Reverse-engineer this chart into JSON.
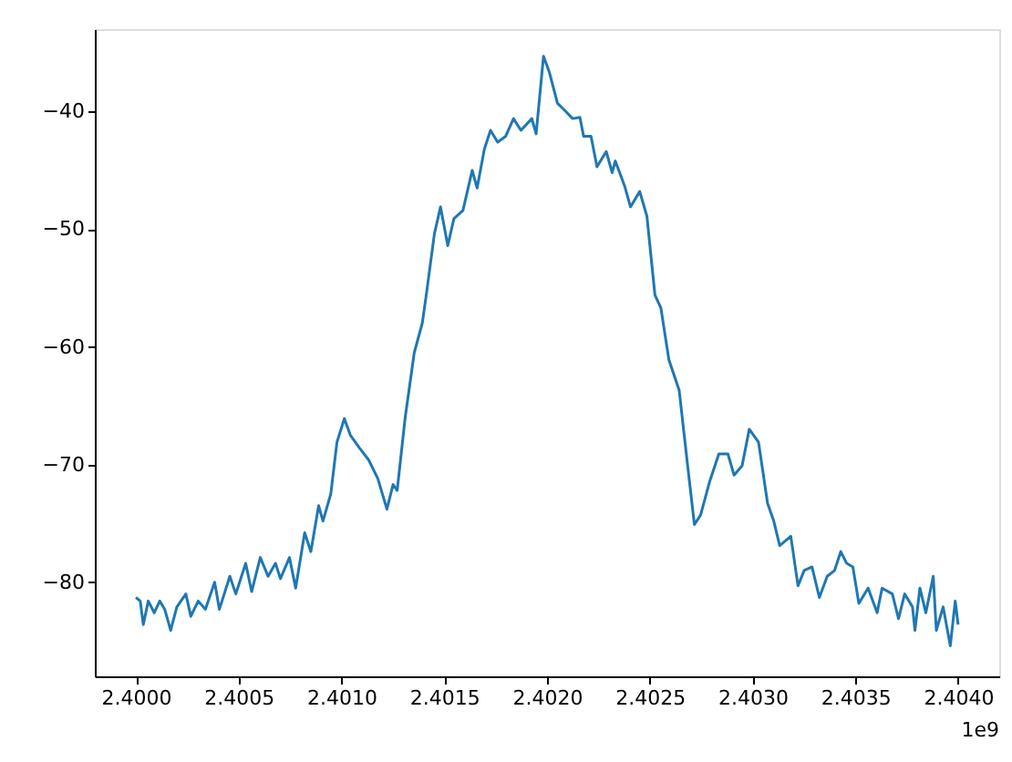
{
  "chart_data": {
    "type": "line",
    "grid": false,
    "annotations": [
      "1e9"
    ],
    "xlim": [
      2.3998,
      2.4042
    ],
    "xticks": [
      {
        "value": 2.4,
        "label": "2.4000"
      },
      {
        "value": 2.4005,
        "label": "2.4005"
      },
      {
        "value": 2.401,
        "label": "2.4010"
      },
      {
        "value": 2.4015,
        "label": "2.4015"
      },
      {
        "value": 2.402,
        "label": "2.4020"
      },
      {
        "value": 2.4025,
        "label": "2.4025"
      },
      {
        "value": 2.403,
        "label": "2.4030"
      },
      {
        "value": 2.4035,
        "label": "2.4035"
      },
      {
        "value": 2.404,
        "label": "2.4040"
      }
    ],
    "ylim": [
      -88,
      -33
    ],
    "yticks": [
      -80,
      -70,
      -60,
      -50,
      -40
    ],
    "series": [
      {
        "color": "#1f77b4",
        "x": [
          2.4,
          2.400021,
          2.400036,
          2.40006,
          2.400089,
          2.400116,
          2.40014,
          2.400169,
          2.400199,
          2.400243,
          2.400267,
          2.400303,
          2.400338,
          2.400383,
          2.400406,
          2.400457,
          2.400486,
          2.400534,
          2.400563,
          2.400605,
          2.400643,
          2.400679,
          2.400703,
          2.400747,
          2.400777,
          2.400821,
          2.400851,
          2.400889,
          2.40091,
          2.400948,
          2.400978,
          2.401014,
          2.401043,
          2.401088,
          2.401132,
          2.401177,
          2.401221,
          2.401251,
          2.401271,
          2.40131,
          2.401354,
          2.401393,
          2.401414,
          2.401452,
          2.401482,
          2.401517,
          2.401547,
          2.401591,
          2.401636,
          2.40166,
          2.401695,
          2.401725,
          2.40176,
          2.401799,
          2.401837,
          2.401873,
          2.401926,
          2.401947,
          2.401983,
          2.402012,
          2.402051,
          2.40208,
          2.402125,
          2.40216,
          2.402178,
          2.402214,
          2.402243,
          2.402288,
          2.402317,
          2.402332,
          2.402377,
          2.402406,
          2.402451,
          2.402486,
          2.402525,
          2.402554,
          2.402593,
          2.402643,
          2.402688,
          2.402717,
          2.402747,
          2.402792,
          2.402836,
          2.40288,
          2.40291,
          2.402949,
          2.402984,
          2.403029,
          2.403073,
          2.403103,
          2.403132,
          2.403186,
          2.403221,
          2.403251,
          2.403289,
          2.403325,
          2.403363,
          2.403399,
          2.403429,
          2.403458,
          2.403488,
          2.403517,
          2.403562,
          2.403606,
          2.40363,
          2.40368,
          2.40371,
          2.40374,
          2.403778,
          2.40379,
          2.403814,
          2.403843,
          2.403879,
          2.403894,
          2.403927,
          2.403962,
          2.403986,
          2.404
        ],
        "values": [
          -81.3,
          -81.6,
          -83.6,
          -81.6,
          -82.6,
          -81.6,
          -82.3,
          -84.1,
          -82.1,
          -81.0,
          -82.9,
          -81.6,
          -82.3,
          -80.0,
          -82.3,
          -79.5,
          -81.0,
          -78.4,
          -80.8,
          -77.9,
          -79.5,
          -78.4,
          -79.7,
          -77.9,
          -80.5,
          -75.8,
          -77.4,
          -73.5,
          -74.8,
          -72.5,
          -68.1,
          -66.1,
          -67.5,
          -68.6,
          -69.6,
          -71.2,
          -73.8,
          -71.7,
          -72.2,
          -66.0,
          -60.5,
          -58.0,
          -55.4,
          -50.4,
          -48.1,
          -51.4,
          -49.1,
          -48.4,
          -45.0,
          -46.5,
          -43.2,
          -41.6,
          -42.6,
          -42.1,
          -40.6,
          -41.6,
          -40.6,
          -41.9,
          -35.3,
          -36.7,
          -39.3,
          -39.8,
          -40.6,
          -40.5,
          -42.1,
          -42.1,
          -44.7,
          -43.4,
          -45.2,
          -44.2,
          -46.3,
          -48.1,
          -46.8,
          -48.9,
          -55.6,
          -56.7,
          -61.1,
          -63.7,
          -70.7,
          -75.1,
          -74.3,
          -71.4,
          -69.1,
          -69.1,
          -70.9,
          -70.1,
          -67.0,
          -68.1,
          -73.3,
          -74.8,
          -76.9,
          -76.1,
          -80.3,
          -79.0,
          -78.7,
          -81.3,
          -79.5,
          -79.0,
          -77.4,
          -78.4,
          -78.7,
          -81.8,
          -80.5,
          -82.6,
          -80.5,
          -81.0,
          -83.1,
          -81.0,
          -82.1,
          -84.1,
          -80.5,
          -82.6,
          -79.5,
          -84.1,
          -82.1,
          -85.4,
          -81.6,
          -83.6
        ]
      }
    ]
  }
}
